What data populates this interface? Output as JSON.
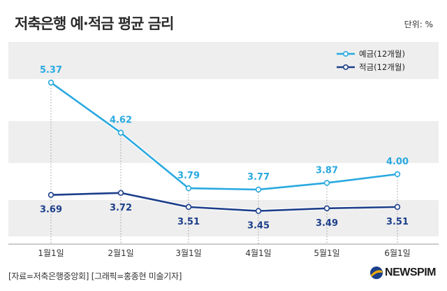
{
  "header": {
    "title": "저축은행 예·적금 평균 금리",
    "unit": "단위: %"
  },
  "footer": {
    "source": "[자료=저축은행중앙회] [그래픽=홍종현 미술기자]",
    "logo_text": "NEWSPIM"
  },
  "colors": {
    "deposit": "#29a9e0",
    "savings": "#1c3f8a",
    "band": "#eeeeee"
  },
  "chart_data": {
    "type": "line",
    "categories": [
      "1월1일",
      "2월1일",
      "3월1일",
      "4월1일",
      "5월1일",
      "6월1일"
    ],
    "series": [
      {
        "name": "예금(12개월)",
        "values": [
          5.37,
          4.62,
          3.79,
          3.77,
          3.87,
          4.0
        ]
      },
      {
        "name": "적금(12개월)",
        "values": [
          3.69,
          3.72,
          3.51,
          3.45,
          3.49,
          3.51
        ]
      }
    ],
    "legend_position": "top-right",
    "value_labels": true
  }
}
